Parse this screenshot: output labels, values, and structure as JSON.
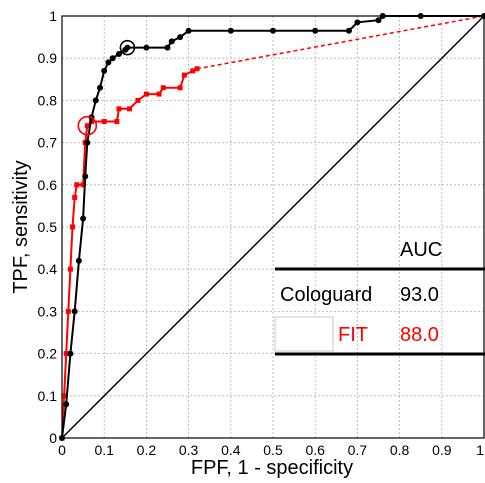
{
  "chart_data": {
    "type": "line",
    "xlabel": "FPF, 1 - specificity",
    "ylabel": "TPF, sensitivity",
    "xlim": [
      0,
      1
    ],
    "ylim": [
      0,
      1
    ],
    "xticks": [
      "0",
      "0.1",
      "0.2",
      "0.3",
      "0.4",
      "0.5",
      "0.6",
      "0.7",
      "0.8",
      "0.9",
      "1"
    ],
    "yticks": [
      "0",
      "0.1",
      "0.2",
      "0.3",
      "0.4",
      "0.5",
      "0.6",
      "0.7",
      "0.8",
      "0.9",
      "1"
    ],
    "grid": true,
    "colors": {
      "cologuard": "#000000",
      "fit": "#ff0000",
      "chance": "#000000"
    },
    "series": [
      {
        "name": "Cologuard",
        "auc": "93.0",
        "operating_point": [
          0.155,
          0.925
        ],
        "points": [
          [
            0,
            0
          ],
          [
            0.01,
            0.08
          ],
          [
            0.02,
            0.2
          ],
          [
            0.03,
            0.3
          ],
          [
            0.04,
            0.42
          ],
          [
            0.05,
            0.52
          ],
          [
            0.055,
            0.62
          ],
          [
            0.06,
            0.7
          ],
          [
            0.07,
            0.76
          ],
          [
            0.08,
            0.8
          ],
          [
            0.09,
            0.83
          ],
          [
            0.1,
            0.87
          ],
          [
            0.11,
            0.89
          ],
          [
            0.12,
            0.9
          ],
          [
            0.135,
            0.91
          ],
          [
            0.15,
            0.92
          ],
          [
            0.155,
            0.925
          ],
          [
            0.2,
            0.925
          ],
          [
            0.25,
            0.925
          ],
          [
            0.26,
            0.94
          ],
          [
            0.28,
            0.95
          ],
          [
            0.3,
            0.965
          ],
          [
            0.4,
            0.965
          ],
          [
            0.5,
            0.965
          ],
          [
            0.6,
            0.965
          ],
          [
            0.68,
            0.965
          ],
          [
            0.7,
            0.985
          ],
          [
            0.75,
            0.99
          ],
          [
            0.76,
            1
          ],
          [
            0.85,
            1
          ],
          [
            1,
            1
          ]
        ]
      },
      {
        "name": "FIT",
        "auc": "88.0",
        "operating_point": [
          0.06,
          0.74
        ],
        "points": [
          [
            0,
            0
          ],
          [
            0.005,
            0.1
          ],
          [
            0.01,
            0.2
          ],
          [
            0.015,
            0.3
          ],
          [
            0.02,
            0.4
          ],
          [
            0.025,
            0.5
          ],
          [
            0.03,
            0.57
          ],
          [
            0.035,
            0.6
          ],
          [
            0.05,
            0.6
          ],
          [
            0.055,
            0.7
          ],
          [
            0.06,
            0.74
          ],
          [
            0.07,
            0.75
          ],
          [
            0.1,
            0.75
          ],
          [
            0.13,
            0.75
          ],
          [
            0.135,
            0.78
          ],
          [
            0.16,
            0.78
          ],
          [
            0.18,
            0.8
          ],
          [
            0.2,
            0.815
          ],
          [
            0.23,
            0.815
          ],
          [
            0.24,
            0.83
          ],
          [
            0.28,
            0.83
          ],
          [
            0.29,
            0.86
          ],
          [
            0.31,
            0.87
          ],
          [
            0.32,
            0.875
          ]
        ],
        "extrapolated": [
          [
            0.32,
            0.875
          ],
          [
            1,
            1
          ]
        ]
      }
    ],
    "reference_line": {
      "from": [
        0,
        0
      ],
      "to": [
        1,
        1
      ]
    },
    "legend": {
      "header": "AUC",
      "position": "lower-right",
      "entries": [
        {
          "label": "Cologuard",
          "value": "93.0",
          "color": "#000000"
        },
        {
          "label": "FIT",
          "value": "88.0",
          "color": "#ff0000"
        }
      ]
    }
  }
}
